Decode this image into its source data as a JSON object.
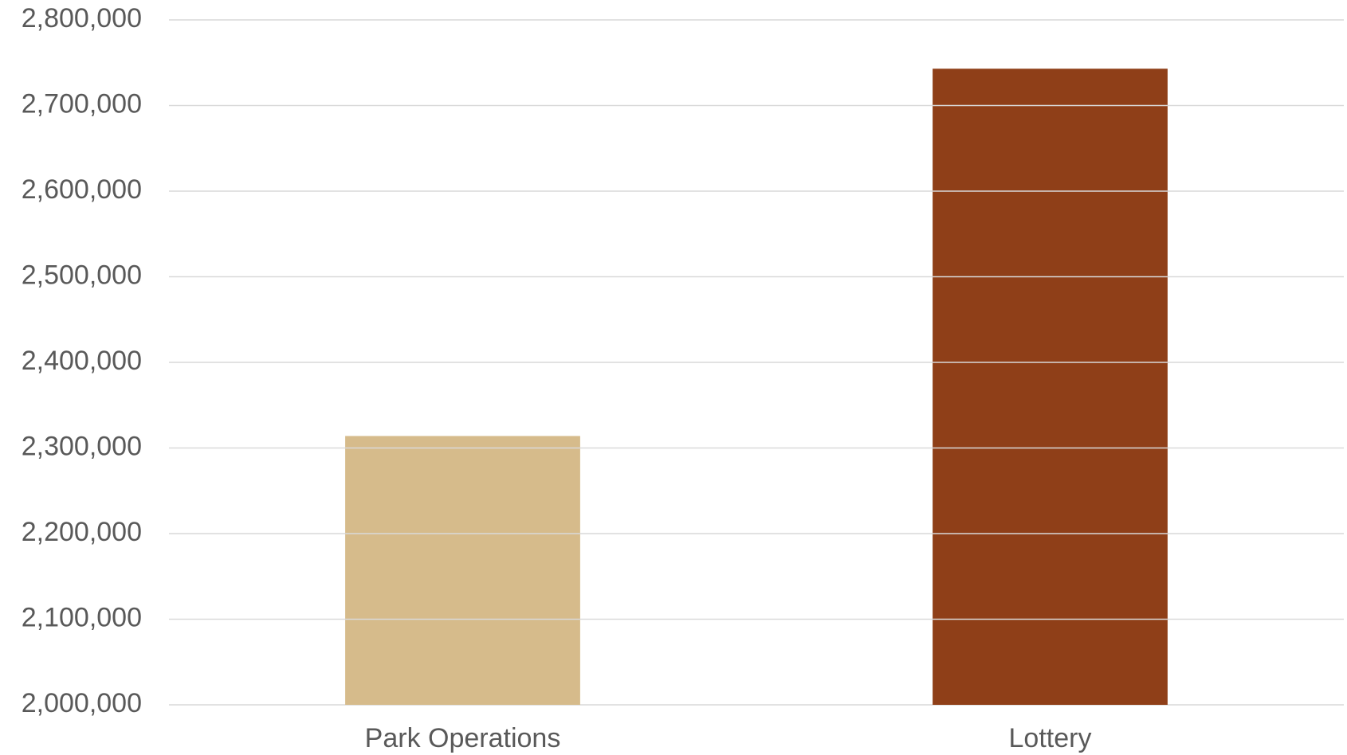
{
  "chart_data": {
    "type": "bar",
    "title": "",
    "xlabel": "",
    "ylabel": "",
    "categories": [
      "Park Operations",
      "Lottery"
    ],
    "values": [
      2314000,
      2743000
    ],
    "colors": [
      "#d6bb8b",
      "#8f3f18"
    ],
    "ylim": [
      2000000,
      2800000
    ],
    "ytick_step": 100000,
    "yticks": [
      "2,000,000",
      "2,100,000",
      "2,200,000",
      "2,300,000",
      "2,400,000",
      "2,500,000",
      "2,600,000",
      "2,700,000",
      "2,800,000"
    ],
    "grid": true,
    "legend": "none",
    "gridline_color": "#d9d9d9",
    "text_color": "#595959"
  }
}
